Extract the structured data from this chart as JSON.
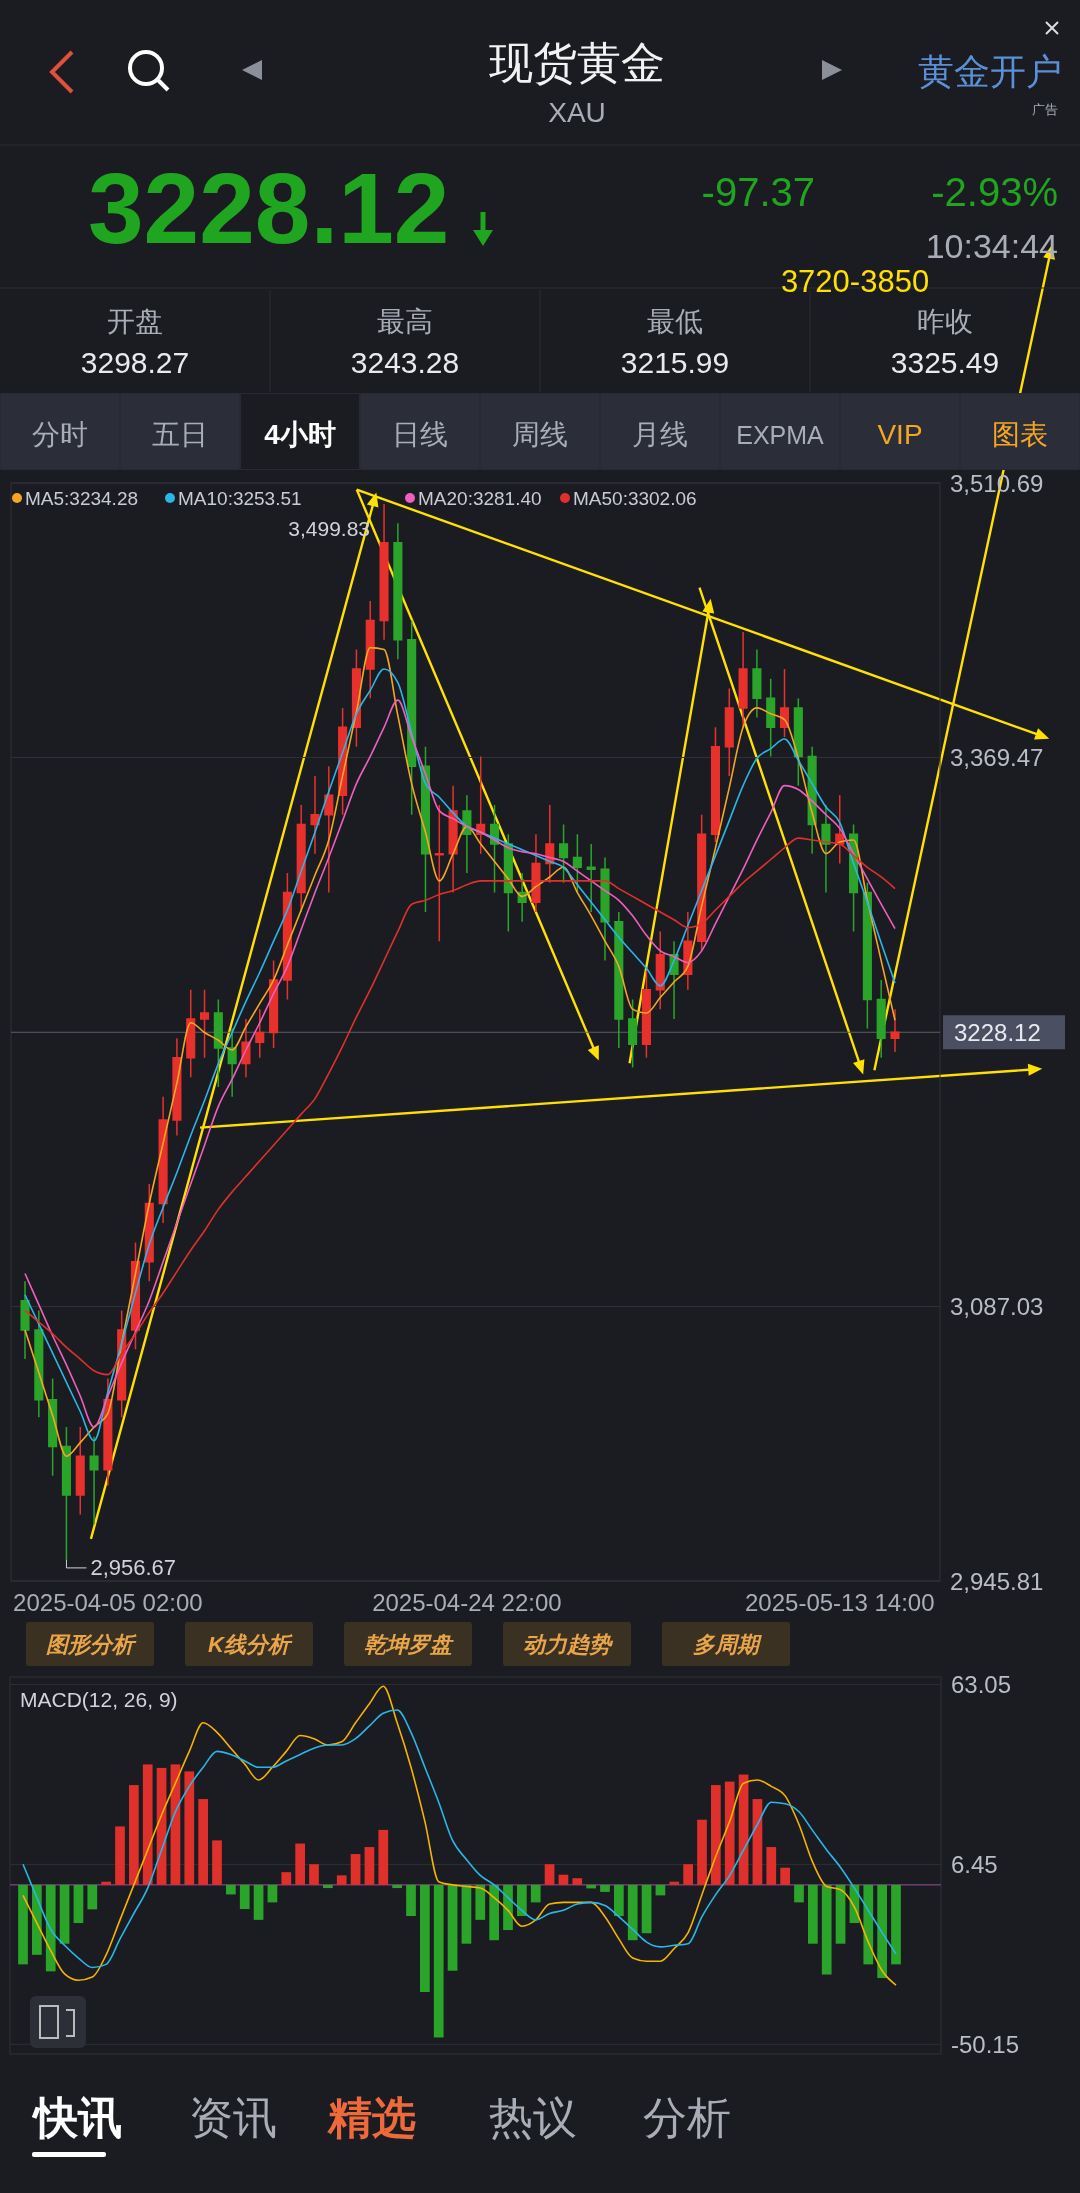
{
  "chart_data": [
    {
      "type": "other",
      "title": "现货黄金",
      "subtitle": "XAU",
      "annotations": [
        "黄金开户",
        "广告",
        "3228.12",
        "-97.37",
        "-2.93%",
        "10:34:44",
        "开盘",
        "3298.27",
        "最高",
        "3243.28",
        "最低",
        "3215.99",
        "昨收",
        "3325.49",
        "分时",
        "五日",
        "4小时",
        "日线",
        "周线",
        "月线",
        "EXPMA",
        "VIP",
        "图表",
        "图形分析",
        "K线分析",
        "乾坤罗盘",
        "动力趋势",
        "多周期",
        "快讯",
        "资讯",
        "精选",
        "热议",
        "分析"
      ]
    },
    {
      "type": "candlestick",
      "categories": [
        null,
        null,
        null,
        null,
        null,
        null,
        "2025-04-05 02:00",
        null,
        null,
        null,
        null,
        null,
        null,
        null,
        null,
        null,
        null,
        null,
        null,
        null,
        null,
        null,
        null,
        null,
        null,
        null,
        null,
        null,
        null,
        null,
        null,
        null,
        "2025-04-24 22:00",
        null,
        null,
        null,
        null,
        null,
        null,
        null,
        null,
        null,
        null,
        null,
        null,
        null,
        null,
        null,
        null,
        null,
        null,
        null,
        null,
        null,
        null,
        null,
        null,
        null,
        null,
        "2025-05-13 14:00",
        null,
        null,
        null,
        null
      ],
      "ohlc": [
        [
          3090,
          3100,
          3060,
          3075
        ],
        [
          3075,
          3085,
          3030,
          3039
        ],
        [
          3039,
          3050,
          3000,
          3015
        ],
        [
          3015,
          3025,
          2956.67,
          2990
        ],
        [
          2990,
          3025,
          2980,
          3010
        ],
        [
          3010,
          3020,
          2975,
          3003
        ],
        [
          3003,
          3050,
          2995,
          3039
        ],
        [
          3039,
          3085,
          3030,
          3075
        ],
        [
          3075,
          3120,
          3065,
          3110
        ],
        [
          3110,
          3150,
          3100,
          3140
        ],
        [
          3140,
          3195,
          3130,
          3183
        ],
        [
          3183,
          3225,
          3175,
          3215
        ],
        [
          3215,
          3250,
          3205,
          3235
        ],
        [
          3235,
          3250,
          3215,
          3238
        ],
        [
          3238,
          3245,
          3200,
          3220
        ],
        [
          3220,
          3230,
          3195,
          3212
        ],
        [
          3212,
          3235,
          3205,
          3223
        ],
        [
          3223,
          3240,
          3215,
          3228
        ],
        [
          3228,
          3265,
          3220,
          3255
        ],
        [
          3255,
          3310,
          3245,
          3300
        ],
        [
          3300,
          3345,
          3290,
          3335
        ],
        [
          3335,
          3360,
          3320,
          3340
        ],
        [
          3340,
          3365,
          3300,
          3350
        ],
        [
          3350,
          3395,
          3340,
          3385
        ],
        [
          3385,
          3425,
          3375,
          3415
        ],
        [
          3415,
          3450,
          3400,
          3440
        ],
        [
          3440,
          3499.83,
          3430,
          3480
        ],
        [
          3480,
          3490,
          3420,
          3430
        ],
        [
          3430,
          3440,
          3340,
          3365
        ],
        [
          3365,
          3375,
          3290,
          3320
        ],
        [
          3320,
          3345,
          3275,
          3320
        ],
        [
          3320,
          3355,
          3300,
          3342
        ],
        [
          3342,
          3350,
          3310,
          3330
        ],
        [
          3330,
          3370,
          3320,
          3335
        ],
        [
          3335,
          3345,
          3300,
          3325
        ],
        [
          3325,
          3330,
          3280,
          3300
        ],
        [
          3300,
          3310,
          3285,
          3295
        ],
        [
          3295,
          3330,
          3290,
          3315
        ],
        [
          3315,
          3345,
          3305,
          3325
        ],
        [
          3325,
          3335,
          3305,
          3318
        ],
        [
          3318,
          3330,
          3300,
          3313
        ],
        [
          3313,
          3325,
          3290,
          3312
        ],
        [
          3312,
          3318,
          3265,
          3285
        ],
        [
          3285,
          3290,
          3220,
          3235
        ],
        [
          3235,
          3245,
          3210,
          3222
        ],
        [
          3222,
          3260,
          3215,
          3250
        ],
        [
          3250,
          3280,
          3240,
          3268
        ],
        [
          3268,
          3275,
          3235,
          3258
        ],
        [
          3258,
          3290,
          3250,
          3275
        ],
        [
          3275,
          3340,
          3270,
          3330
        ],
        [
          3330,
          3385,
          3326,
          3375
        ],
        [
          3375,
          3405,
          3360,
          3395
        ],
        [
          3395,
          3434,
          3385,
          3415
        ],
        [
          3415,
          3425,
          3390,
          3400
        ],
        [
          3400,
          3410,
          3370,
          3385
        ],
        [
          3385,
          3415,
          3380,
          3395
        ],
        [
          3395,
          3400,
          3355,
          3370
        ],
        [
          3370,
          3375,
          3320,
          3335
        ],
        [
          3335,
          3345,
          3300,
          3325
        ],
        [
          3325,
          3350,
          3315,
          3330
        ],
        [
          3330,
          3335,
          3280,
          3300
        ],
        [
          3300,
          3305,
          3230,
          3245
        ],
        [
          3245,
          3255,
          3215,
          3225
        ],
        [
          3225,
          3240,
          3218,
          3228.12
        ]
      ],
      "series": [
        {
          "type": "line",
          "name": "MA5:3234.28",
          "color": "#f5a623",
          "values": [
            3075,
            3053,
            3031,
            3010,
            3017,
            3025,
            3032,
            3068,
            3104,
            3140,
            3171,
            3202,
            3233,
            3228,
            3224,
            3219,
            3231,
            3243,
            3255,
            3273,
            3291,
            3309,
            3327,
            3360,
            3393,
            3426,
            3425,
            3391,
            3356,
            3331,
            3306,
            3320,
            3334,
            3325,
            3316,
            3307,
            3298,
            3303,
            3308,
            3313,
            3300,
            3288,
            3275,
            3262,
            3240,
            3238,
            3246,
            3254,
            3262,
            3293,
            3323,
            3354,
            3385,
            3395,
            3392,
            3389,
            3369,
            3341,
            3320,
            3326,
            3327,
            3296,
            3265,
            3234.28
          ]
        },
        {
          "type": "line",
          "name": "MA10:3253.51",
          "color": "#29b6e8",
          "values": [
            3093,
            3078,
            3063,
            3048,
            3033,
            3018,
            3043,
            3068,
            3094,
            3119,
            3138,
            3156,
            3175,
            3193,
            3212,
            3228,
            3244,
            3259,
            3275,
            3291,
            3311,
            3331,
            3352,
            3372,
            3392,
            3404,
            3415,
            3408,
            3382,
            3356,
            3349,
            3341,
            3334,
            3331,
            3328,
            3325,
            3322,
            3319,
            3316,
            3313,
            3304,
            3295,
            3286,
            3277,
            3269,
            3261,
            3252,
            3265,
            3283,
            3301,
            3319,
            3337,
            3355,
            3369,
            3374,
            3379,
            3368,
            3356,
            3344,
            3336,
            3315,
            3295,
            3274,
            3253.51
          ]
        },
        {
          "type": "line",
          "name": "MA20:3281.40",
          "color": "#ee5fc0",
          "values": [
            3104,
            3088,
            3072,
            3057,
            3041,
            3025,
            3041,
            3058,
            3074,
            3090,
            3110,
            3130,
            3150,
            3170,
            3190,
            3204,
            3219,
            3233,
            3248,
            3262,
            3281,
            3300,
            3318,
            3337,
            3356,
            3370,
            3385,
            3399,
            3380,
            3361,
            3342,
            3338,
            3334,
            3331,
            3327,
            3323,
            3321,
            3320,
            3318,
            3316,
            3311,
            3306,
            3301,
            3296,
            3288,
            3278,
            3270,
            3267,
            3264,
            3270,
            3284,
            3298,
            3312,
            3327,
            3341,
            3355,
            3353,
            3347,
            3340,
            3333,
            3320,
            3307,
            3294,
            3281.4
          ]
        },
        {
          "type": "line",
          "name": "MA50:3302.06",
          "color": "#e0302c",
          "values": [
            3085,
            3079,
            3073,
            3066,
            3060,
            3054,
            3052,
            3063,
            3073,
            3084,
            3094,
            3105,
            3116,
            3126,
            3137,
            3146,
            3154,
            3162,
            3170,
            3178,
            3186,
            3194,
            3207,
            3221,
            3236,
            3250,
            3265,
            3280,
            3294,
            3296,
            3299,
            3301,
            3304,
            3306,
            3306,
            3306,
            3306,
            3306,
            3306,
            3306,
            3306,
            3306,
            3306,
            3302,
            3298,
            3294,
            3290,
            3286,
            3282,
            3284,
            3291,
            3298,
            3305,
            3311,
            3317,
            3323,
            3328,
            3327,
            3326,
            3325,
            3319,
            3313,
            3308,
            3302.06
          ]
        }
      ],
      "ylim": [
        2945.81,
        3510.69
      ],
      "yticks": [
        {
          "value": 2945.81,
          "label": "2,945.81"
        },
        {
          "value": 3087.03,
          "label": "3,087.03"
        },
        {
          "value": 3369.47,
          "label": "3,369.47"
        },
        {
          "value": 3510.69,
          "label": "3,510.69"
        }
      ],
      "grid": true,
      "legend": "top left",
      "ref_lines": [
        {
          "axis": "y",
          "value": 3228.12,
          "label": "3228.12",
          "color": "#5a5f6e"
        }
      ],
      "annotations": [
        "3720-3850",
        "3,499.83",
        "2,956.67"
      ]
    },
    {
      "type": "bar",
      "title": "MACD(12, 26, 9)",
      "categories": [
        null,
        null,
        null,
        null,
        null,
        null,
        null,
        null,
        null,
        null,
        null,
        null,
        null,
        null,
        null,
        null,
        null,
        null,
        null,
        null,
        null,
        null,
        null,
        null,
        null,
        null,
        null,
        null,
        null,
        null,
        null,
        null,
        null,
        null,
        null,
        null,
        null,
        null,
        null,
        null,
        null,
        null,
        null,
        null,
        null,
        null,
        null,
        null,
        null,
        null,
        null,
        null,
        null,
        null,
        null,
        null,
        null,
        null,
        null,
        null,
        null,
        null,
        null,
        null
      ],
      "series": [
        {
          "type": "bar",
          "values": [
            -25,
            -22,
            -27.2,
            -18.5,
            -12,
            -7.7,
            1,
            18.4,
            31.4,
            37.9,
            36.8,
            37.9,
            35.7,
            27,
            14,
            -3,
            -7.6,
            -11,
            -5.5,
            4,
            13,
            6.5,
            -1,
            3,
            9.7,
            11.9,
            17.3,
            -1,
            -9.8,
            -33.7,
            -48,
            -27,
            -18.5,
            -11,
            -17.4,
            -14.2,
            -9.8,
            -5.5,
            6.5,
            3.2,
            2.1,
            -1.1,
            -2.2,
            -9.8,
            -17.4,
            -15.2,
            -3.3,
            1,
            6.5,
            20.5,
            31.4,
            32.5,
            34.7,
            27,
            11.9,
            5.4,
            -5.5,
            -18.5,
            -28.2,
            -18.5,
            -12,
            -25,
            -29.3,
            -25
          ],
          "colors": [
            "#2aa52a",
            "#2aa52a",
            "#2aa52a",
            "#2aa52a",
            "#2aa52a",
            "#2aa52a",
            "#e0302c",
            "#e0302c",
            "#e0302c",
            "#e0302c",
            "#e0302c",
            "#e0302c",
            "#e0302c",
            "#e0302c",
            "#e0302c",
            "#2aa52a",
            "#2aa52a",
            "#2aa52a",
            "#2aa52a",
            "#e0302c",
            "#e0302c",
            "#e0302c",
            "#2aa52a",
            "#e0302c",
            "#e0302c",
            "#e0302c",
            "#e0302c",
            "#2aa52a",
            "#2aa52a",
            "#2aa52a",
            "#2aa52a",
            "#2aa52a",
            "#2aa52a",
            "#2aa52a",
            "#2aa52a",
            "#2aa52a",
            "#2aa52a",
            "#2aa52a",
            "#e0302c",
            "#e0302c",
            "#e0302c",
            "#2aa52a",
            "#2aa52a",
            "#2aa52a",
            "#2aa52a",
            "#2aa52a",
            "#2aa52a",
            "#e0302c",
            "#e0302c",
            "#e0302c",
            "#e0302c",
            "#e0302c",
            "#e0302c",
            "#e0302c",
            "#e0302c",
            "#e0302c",
            "#2aa52a",
            "#2aa52a",
            "#2aa52a",
            "#2aa52a",
            "#2aa52a",
            "#2aa52a",
            "#2aa52a",
            "#2aa52a"
          ]
        },
        {
          "type": "line",
          "color": "#f5b400",
          "values": [
            -3.3,
            -12,
            -20.7,
            -28,
            -30,
            -29,
            -22,
            -11,
            0,
            11,
            22,
            32,
            42,
            51,
            48,
            43,
            38,
            33,
            37,
            42,
            47,
            46,
            44,
            45,
            51,
            57,
            62.5,
            51,
            37,
            20,
            1,
            0,
            -0.5,
            -1,
            -4,
            -8,
            -13,
            -11,
            -6,
            -5.5,
            -5.5,
            -5.5,
            -10,
            -17,
            -23,
            -24,
            -24,
            -20,
            -15,
            -3,
            9,
            20,
            32,
            33,
            31,
            28,
            19,
            7,
            -0.5,
            -1.5,
            -7,
            -18,
            -27,
            -31.5
          ]
        },
        {
          "type": "line",
          "color": "#29b6e8",
          "values": [
            6.5,
            -4,
            -14,
            -19,
            -23,
            -26,
            -25,
            -17,
            -9,
            -1,
            11,
            23,
            31,
            37,
            42,
            41,
            39,
            37,
            37,
            39,
            41,
            43,
            44,
            44,
            46,
            50,
            54,
            55,
            48,
            37,
            26,
            14,
            8,
            3,
            0,
            -4,
            -8,
            -11,
            -9,
            -8,
            -6,
            -5.5,
            -6.5,
            -10,
            -14,
            -18,
            -19.5,
            -19,
            -18.5,
            -10,
            -3,
            3,
            11,
            19,
            26,
            25.5,
            23,
            17,
            11,
            5.5,
            -1,
            -8,
            -15,
            -21.7
          ]
        }
      ],
      "ylim": [
        -53.2,
        65.4
      ],
      "yticks": [
        -50.15,
        6.45,
        63.05
      ],
      "grid": true,
      "ref_lines": [
        {
          "axis": "y",
          "value": 0,
          "color": "#9b4f9b"
        }
      ]
    }
  ]
}
